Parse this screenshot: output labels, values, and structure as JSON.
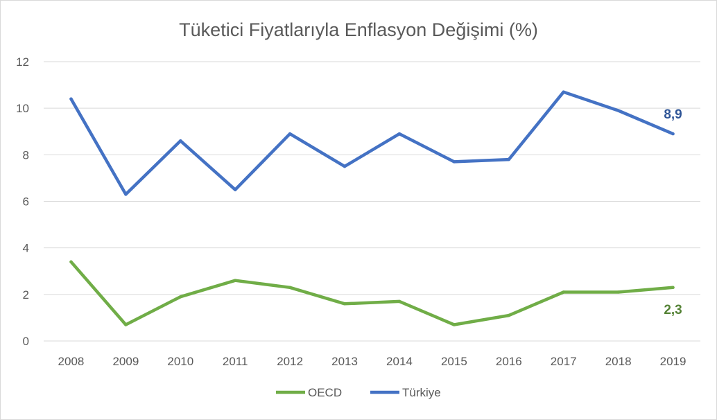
{
  "chart_data": {
    "type": "line",
    "title": "Tüketici Fiyatlarıyla Enflasyon Değişimi (%)",
    "x": [
      "2008",
      "2009",
      "2010",
      "2011",
      "2012",
      "2013",
      "2014",
      "2015",
      "2016",
      "2017",
      "2018",
      "2019"
    ],
    "ylim": [
      0,
      12
    ],
    "yticks": [
      "0",
      "2",
      "4",
      "6",
      "8",
      "10",
      "12"
    ],
    "grid": true,
    "legend_position": "bottom",
    "series": [
      {
        "name": "OECD",
        "color": "#70ad47",
        "values": [
          3.4,
          0.7,
          1.9,
          2.6,
          2.3,
          1.6,
          1.7,
          0.7,
          1.1,
          2.1,
          2.1,
          2.3
        ],
        "end_label": "2,3"
      },
      {
        "name": "Türkiye",
        "color": "#4472c4",
        "values": [
          10.4,
          6.3,
          8.6,
          6.5,
          8.9,
          7.5,
          8.9,
          7.7,
          7.8,
          10.7,
          9.9,
          8.9
        ],
        "end_label": "8,9"
      }
    ]
  }
}
